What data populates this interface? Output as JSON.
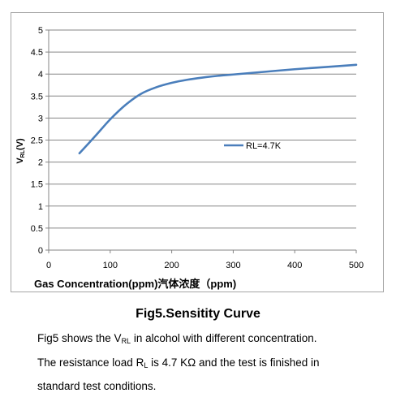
{
  "chart_data": {
    "type": "line",
    "xlabel": "Gas Concentration(ppm)汽体浓度（ppm)",
    "ylabel_main": "V",
    "ylabel_sub": "RL",
    "ylabel_suffix": "(V)",
    "xlim": [
      0,
      500
    ],
    "ylim": [
      0,
      5
    ],
    "x_ticks": [
      "0",
      "100",
      "200",
      "300",
      "400",
      "500"
    ],
    "y_ticks": [
      "0",
      "0.5",
      "1",
      "1.5",
      "2",
      "2.5",
      "3",
      "3.5",
      "4",
      "4.5",
      "5"
    ],
    "grid": "horizontal",
    "legend_position": "right",
    "series_color": "#4a7ebb",
    "series": [
      {
        "name": "RL=4.7K",
        "x": [
          50,
          75,
          100,
          125,
          150,
          175,
          200,
          225,
          250,
          275,
          300,
          350,
          400,
          450,
          500
        ],
        "y": [
          2.2,
          2.58,
          2.97,
          3.3,
          3.55,
          3.7,
          3.8,
          3.87,
          3.92,
          3.96,
          3.99,
          4.05,
          4.11,
          4.16,
          4.21
        ]
      }
    ]
  },
  "caption": {
    "title": "Fig5.Sensitity Curve",
    "line1": {
      "a": "Fig5 shows the V",
      "sub": "RL",
      "b": " in alcohol with different concentration."
    },
    "line2": {
      "a": "The resistance load R",
      "sub": "L",
      "b": " is 4.7 KΩ and the test is finished in"
    },
    "line3": "standard test conditions."
  }
}
